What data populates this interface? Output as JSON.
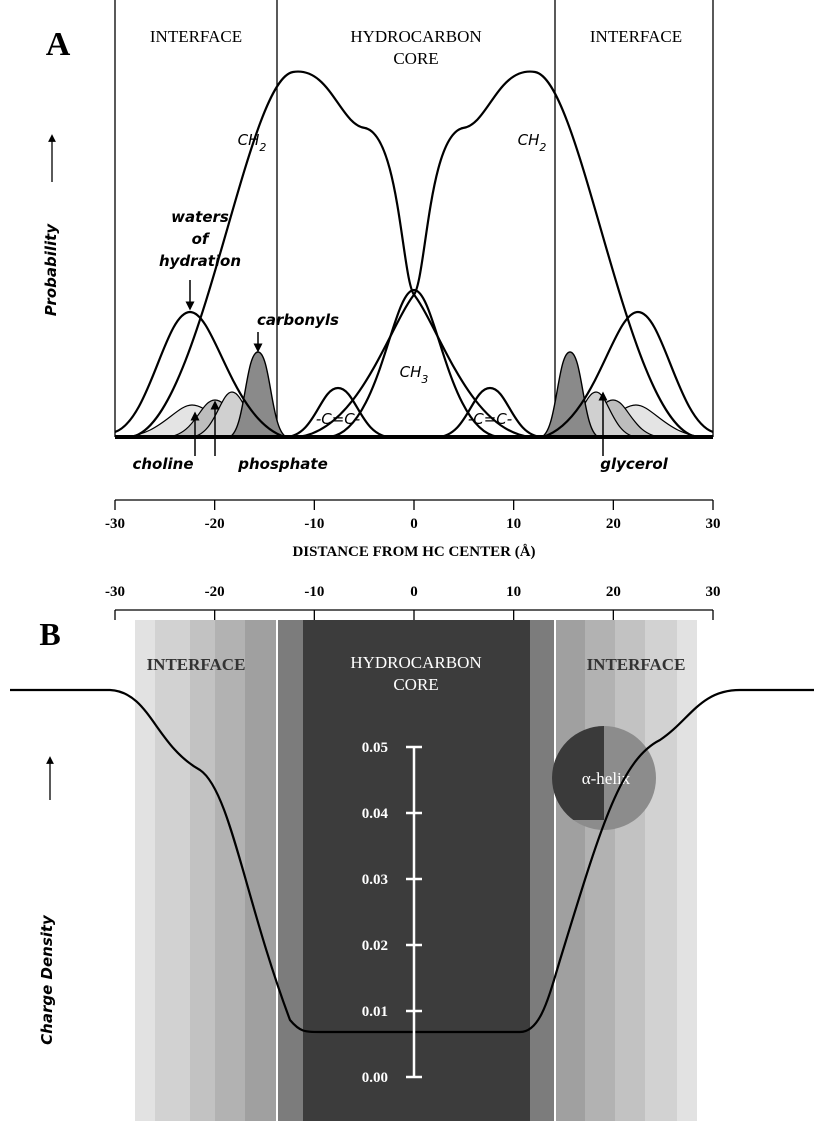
{
  "chart_data": [
    {
      "type": "profile",
      "panel_label": "A",
      "region_left": "INTERFACE",
      "region_center": [
        "HYDROCARBON",
        "CORE"
      ],
      "region_right": "INTERFACE",
      "ylabel": "Probability",
      "xlabel": "DISTANCE FROM HC CENTER (Å)",
      "xlim": [
        -30,
        30
      ],
      "xticks": [
        -30,
        -20,
        -10,
        0,
        10,
        20,
        30
      ],
      "annotations": {
        "ch2": [
          "CH",
          "2"
        ],
        "ch3": [
          "CH",
          "3"
        ],
        "waters": [
          "waters",
          "of",
          "hydration"
        ],
        "carbonyls": "carbonyls",
        "cc": "-C=C-",
        "choline": "choline",
        "phosphate": "phosphate",
        "glycerol": "glycerol"
      }
    },
    {
      "type": "charge",
      "panel_label": "B",
      "region_left": "INTERFACE",
      "region_center": [
        "HYDROCARBON",
        "CORE"
      ],
      "region_right": "INTERFACE",
      "ylabel": "Charge Density",
      "xlim": [
        -30,
        30
      ],
      "xticks": [
        -30,
        -20,
        -10,
        0,
        10,
        20,
        30
      ],
      "scale_lim": [
        0,
        0.05
      ],
      "scale_ticks": [
        {
          "value": 0,
          "label": "0.00"
        },
        {
          "value": 0.01,
          "label": "0.01"
        },
        {
          "value": 0.02,
          "label": "0.02"
        },
        {
          "value": 0.03,
          "label": "0.03"
        },
        {
          "value": 0.04,
          "label": "0.04"
        },
        {
          "value": 0.05,
          "label": "0.05"
        }
      ],
      "helix_label": "α-helix"
    }
  ]
}
